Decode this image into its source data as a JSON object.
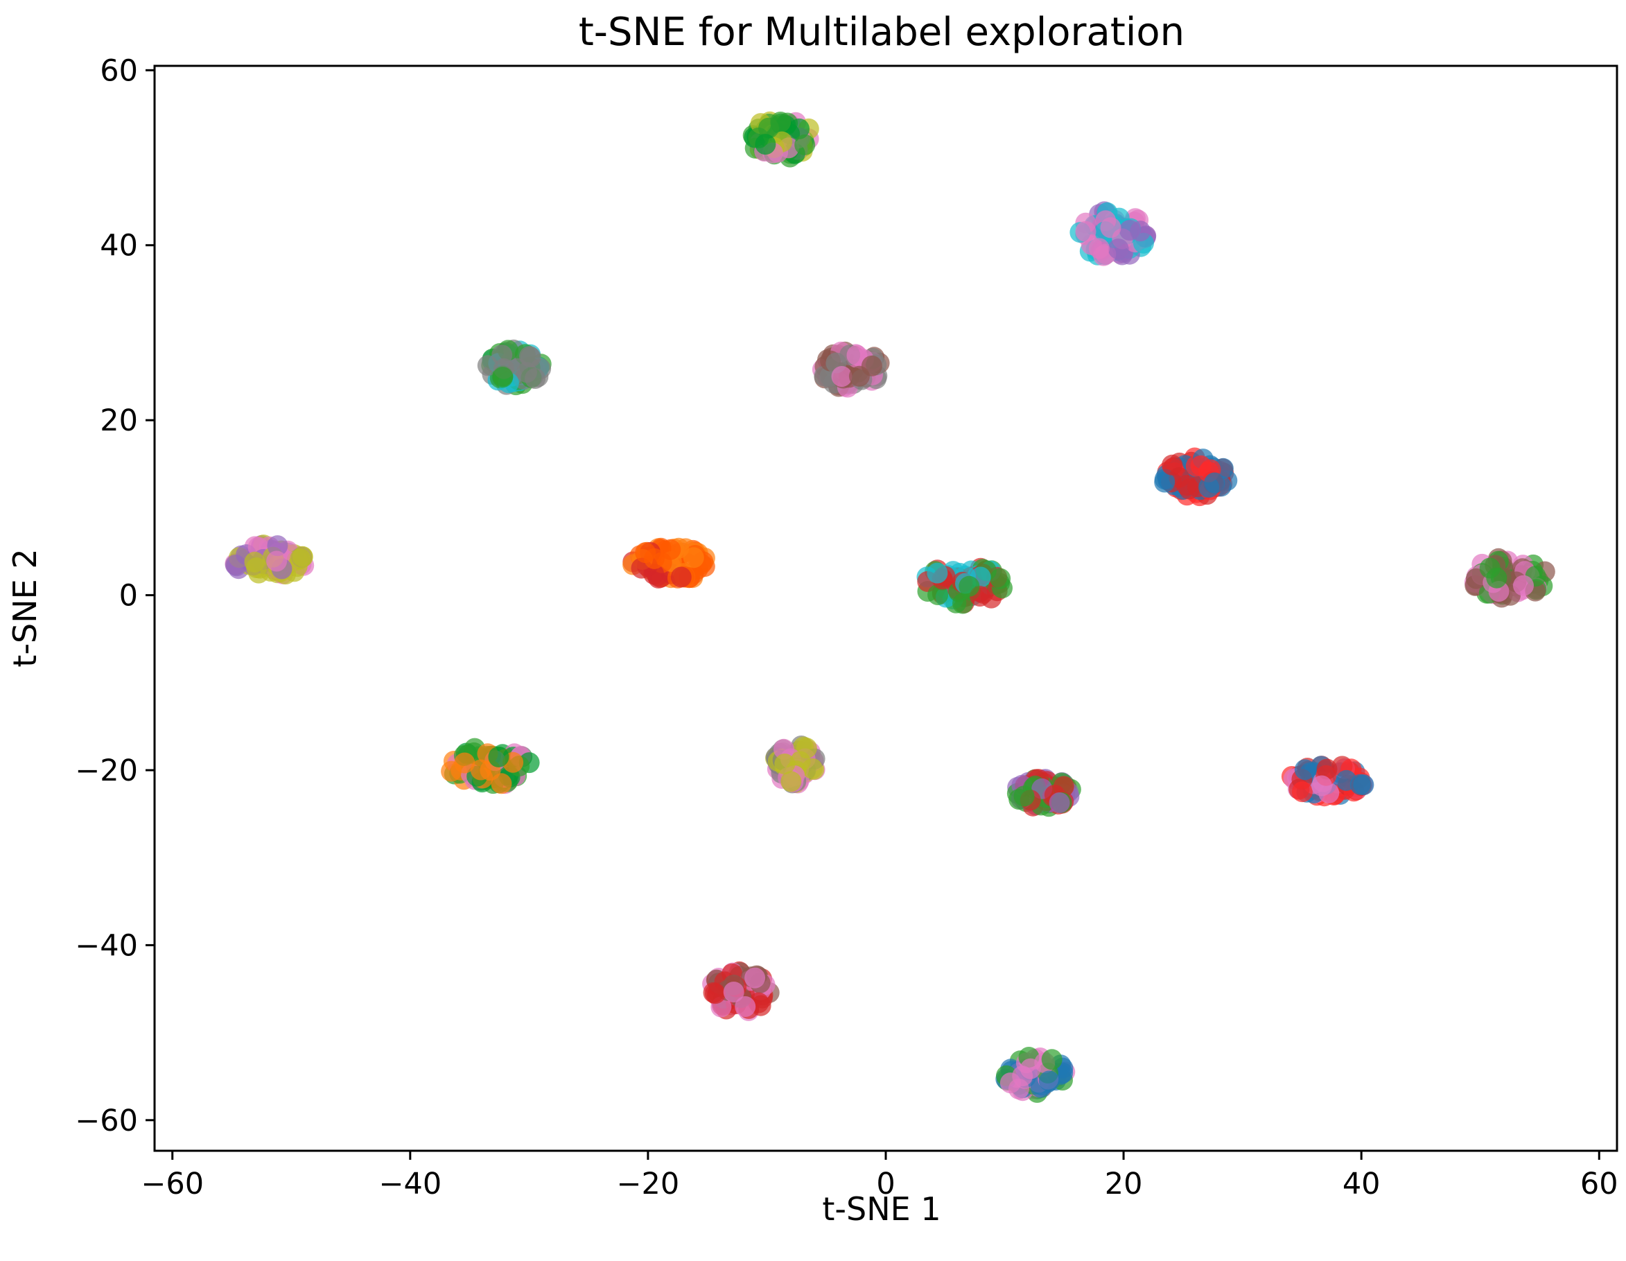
{
  "chart_data": {
    "type": "scatter",
    "title": "t-SNE for Multilabel exploration",
    "xlabel": "t-SNE 1",
    "ylabel": "t-SNE 2",
    "xlim": [
      -61.5,
      61.5
    ],
    "ylim": [
      -63.5,
      60.5
    ],
    "xticks": [
      -60,
      -40,
      -20,
      0,
      20,
      40,
      60
    ],
    "yticks": [
      -60,
      -40,
      -20,
      0,
      20,
      40,
      60
    ],
    "xtick_labels": [
      "−60",
      "−40",
      "−20",
      "0",
      "20",
      "40",
      "60"
    ],
    "ytick_labels": [
      "−60",
      "−40",
      "−20",
      "0",
      "20",
      "40",
      "60"
    ],
    "grid": false,
    "legend": false,
    "marker_alpha": 0.7,
    "clusters": [
      {
        "center": [
          -8.8,
          52.2
        ],
        "spread": [
          2.8,
          2.2
        ],
        "colors": [
          "#bcbd22",
          "#2ca02c",
          "#e377c2",
          "#009b2f"
        ]
      },
      {
        "center": [
          19.2,
          41.2
        ],
        "spread": [
          3.0,
          2.8
        ],
        "colors": [
          "#17becf",
          "#e377c2",
          "#9467bd"
        ]
      },
      {
        "center": [
          -31.2,
          26.0
        ],
        "spread": [
          2.3,
          2.1
        ],
        "colors": [
          "#17becf",
          "#2ca02c",
          "#7f7f7f"
        ]
      },
      {
        "center": [
          -3.0,
          25.8
        ],
        "spread": [
          2.8,
          2.2
        ],
        "colors": [
          "#8c564b",
          "#e377c2",
          "#7f7f7f"
        ]
      },
      {
        "center": [
          26.0,
          13.5
        ],
        "spread": [
          2.8,
          2.2
        ],
        "colors": [
          "#d62728",
          "#1f77b4",
          "#ff2a2a"
        ]
      },
      {
        "center": [
          -51.8,
          4.0
        ],
        "spread": [
          3.2,
          1.8
        ],
        "colors": [
          "#bcbd22",
          "#e377c2",
          "#9467bd"
        ]
      },
      {
        "center": [
          -18.0,
          3.6
        ],
        "spread": [
          3.3,
          1.9
        ],
        "colors": [
          "#ff7f0e",
          "#d62728",
          "#ff5a00"
        ]
      },
      {
        "center": [
          6.6,
          1.3
        ],
        "spread": [
          3.4,
          2.3
        ],
        "colors": [
          "#d62728",
          "#2ca02c",
          "#17becf"
        ]
      },
      {
        "center": [
          52.4,
          2.0
        ],
        "spread": [
          3.2,
          2.3
        ],
        "colors": [
          "#2ca02c",
          "#e377c2",
          "#8c564b"
        ]
      },
      {
        "center": [
          -33.3,
          -19.5
        ],
        "spread": [
          3.4,
          2.2
        ],
        "colors": [
          "#2ca02c",
          "#e377c2",
          "#ff7f0e",
          "#009b2f"
        ]
      },
      {
        "center": [
          -7.6,
          -19.3
        ],
        "spread": [
          1.8,
          2.2
        ],
        "colors": [
          "#7f7f7f",
          "#bcbd22",
          "#e377c2"
        ]
      },
      {
        "center": [
          13.2,
          -22.6
        ],
        "spread": [
          2.5,
          1.6
        ],
        "colors": [
          "#2ca02c",
          "#d62728",
          "#9467bd"
        ]
      },
      {
        "center": [
          37.2,
          -21.2
        ],
        "spread": [
          3.2,
          1.8
        ],
        "colors": [
          "#d62728",
          "#e377c2",
          "#1f77b4",
          "#ff2a2a"
        ]
      },
      {
        "center": [
          -12.2,
          -45.3
        ],
        "spread": [
          2.6,
          2.3
        ],
        "colors": [
          "#e377c2",
          "#d62728",
          "#8c564b"
        ]
      },
      {
        "center": [
          12.6,
          -54.8
        ],
        "spread": [
          2.6,
          2.1
        ],
        "colors": [
          "#1f77b4",
          "#2ca02c",
          "#e377c2"
        ]
      }
    ]
  }
}
